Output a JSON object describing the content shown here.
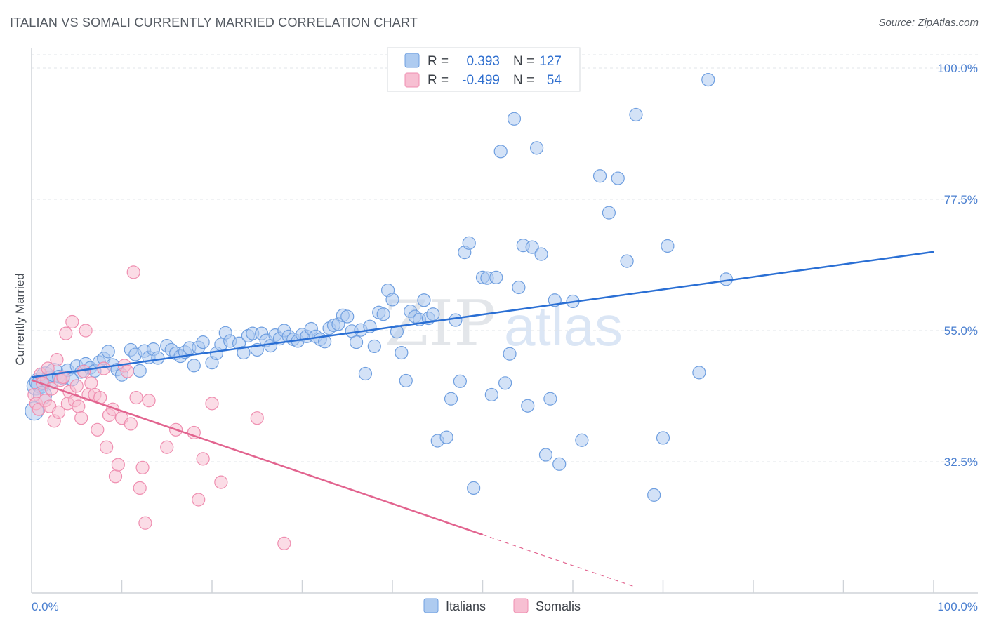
{
  "header": {
    "title": "ITALIAN VS SOMALI CURRENTLY MARRIED CORRELATION CHART",
    "source": "Source: ZipAtlas.com"
  },
  "watermark": {
    "part1": "ZIP",
    "part2": "atlas"
  },
  "legend": {
    "r_label": "R =",
    "n_label": "N =",
    "entries": [
      {
        "r": "0.393",
        "n": "127",
        "color": "#6f9fe0"
      },
      {
        "r": "-0.499",
        "n": "54",
        "color": "#ef8eb0"
      }
    ]
  },
  "chart_data": {
    "type": "scatter",
    "title": "ITALIAN VS SOMALI CURRENTLY MARRIED CORRELATION CHART",
    "xlabel": "",
    "ylabel": "Currently Married",
    "xlim": [
      0,
      100
    ],
    "ylim": [
      10,
      100
    ],
    "x_tick_labels": [
      "0.0%",
      "100.0%"
    ],
    "y_ticks": [
      32.5,
      55.0,
      77.5,
      100.0
    ],
    "y_tick_labels": [
      "32.5%",
      "55.0%",
      "77.5%",
      "100.0%"
    ],
    "grid": true,
    "legend_position": "bottom-center",
    "series": [
      {
        "name": "Italians",
        "color": "#6f9fe0",
        "fill": "#aecbf0",
        "trend": {
          "x0": 0,
          "y0": 47.0,
          "x1": 100,
          "y1": 68.5,
          "dashed_from": null
        },
        "points": [
          [
            0.3,
            41.2
          ],
          [
            0.5,
            45.5
          ],
          [
            0.8,
            46.2
          ],
          [
            1,
            45.8
          ],
          [
            1.2,
            43.9
          ],
          [
            1.5,
            47.2
          ],
          [
            2,
            46.5
          ],
          [
            2.5,
            47.8
          ],
          [
            3,
            47.1
          ],
          [
            3.5,
            46.8
          ],
          [
            4,
            48.2
          ],
          [
            4.5,
            46.6
          ],
          [
            5,
            48.9
          ],
          [
            5.5,
            47.9
          ],
          [
            6,
            49.3
          ],
          [
            6.5,
            48.6
          ],
          [
            7,
            48.1
          ],
          [
            7.5,
            49.6
          ],
          [
            8,
            50.2
          ],
          [
            8.5,
            51.4
          ],
          [
            9,
            49.1
          ],
          [
            9.5,
            48.3
          ],
          [
            10,
            47.4
          ],
          [
            11,
            51.7
          ],
          [
            11.5,
            50.9
          ],
          [
            12,
            48.1
          ],
          [
            12.5,
            51.5
          ],
          [
            13,
            50.4
          ],
          [
            13.5,
            51.8
          ],
          [
            14,
            50.3
          ],
          [
            15,
            52.4
          ],
          [
            15.5,
            51.7
          ],
          [
            16,
            51.1
          ],
          [
            16.5,
            50.6
          ],
          [
            17,
            51.3
          ],
          [
            17.5,
            52.0
          ],
          [
            18,
            49.0
          ],
          [
            18.5,
            52.1
          ],
          [
            19,
            53.0
          ],
          [
            20,
            49.5
          ],
          [
            20.5,
            51.1
          ],
          [
            21,
            52.6
          ],
          [
            21.5,
            54.6
          ],
          [
            22,
            53.2
          ],
          [
            23,
            52.8
          ],
          [
            23.5,
            51.2
          ],
          [
            24,
            54.1
          ],
          [
            24.5,
            54.5
          ],
          [
            25,
            51.7
          ],
          [
            25.5,
            54.5
          ],
          [
            26,
            53.3
          ],
          [
            26.5,
            52.4
          ],
          [
            27,
            54.2
          ],
          [
            27.5,
            53.6
          ],
          [
            28,
            55.0
          ],
          [
            28.5,
            54.0
          ],
          [
            29,
            53.5
          ],
          [
            29.5,
            53.2
          ],
          [
            30,
            54.3
          ],
          [
            30.5,
            54.0
          ],
          [
            31,
            55.3
          ],
          [
            31.5,
            54.0
          ],
          [
            32,
            53.5
          ],
          [
            32.5,
            53.1
          ],
          [
            33,
            55.4
          ],
          [
            33.5,
            55.9
          ],
          [
            34,
            56.1
          ],
          [
            34.5,
            57.6
          ],
          [
            35,
            57.4
          ],
          [
            35.5,
            54.9
          ],
          [
            36,
            53.0
          ],
          [
            36.5,
            55.1
          ],
          [
            37,
            47.6
          ],
          [
            37.5,
            55.7
          ],
          [
            38,
            52.3
          ],
          [
            38.5,
            58.1
          ],
          [
            39,
            57.8
          ],
          [
            39.5,
            61.9
          ],
          [
            40,
            60.3
          ],
          [
            40.5,
            54.8
          ],
          [
            41,
            51.2
          ],
          [
            41.5,
            46.4
          ],
          [
            42,
            58.3
          ],
          [
            42.5,
            57.4
          ],
          [
            43,
            56.9
          ],
          [
            43.5,
            60.2
          ],
          [
            44,
            57.1
          ],
          [
            44.5,
            57.8
          ],
          [
            45,
            36.1
          ],
          [
            46,
            36.7
          ],
          [
            46.5,
            43.3
          ],
          [
            47,
            56.8
          ],
          [
            47.5,
            46.3
          ],
          [
            48,
            68.4
          ],
          [
            48.5,
            70.0
          ],
          [
            49,
            28.0
          ],
          [
            50,
            64.1
          ],
          [
            50.5,
            64.0
          ],
          [
            51,
            44.0
          ],
          [
            51.5,
            64.1
          ],
          [
            52,
            85.7
          ],
          [
            52.5,
            46.0
          ],
          [
            53,
            51.0
          ],
          [
            53.5,
            91.3
          ],
          [
            54,
            62.4
          ],
          [
            54.5,
            69.6
          ],
          [
            55,
            42.1
          ],
          [
            55.5,
            69.3
          ],
          [
            56,
            86.3
          ],
          [
            56.5,
            68.1
          ],
          [
            57,
            33.7
          ],
          [
            57.5,
            43.3
          ],
          [
            58,
            60.2
          ],
          [
            58.5,
            32.1
          ],
          [
            60,
            60.0
          ],
          [
            61,
            36.2
          ],
          [
            63,
            81.5
          ],
          [
            64,
            75.2
          ],
          [
            65,
            81.1
          ],
          [
            66,
            66.9
          ],
          [
            67,
            92.0
          ],
          [
            69,
            26.8
          ],
          [
            70,
            36.6
          ],
          [
            70.5,
            69.5
          ],
          [
            74,
            47.8
          ],
          [
            75,
            98.0
          ],
          [
            77,
            63.8
          ]
        ]
      },
      {
        "name": "Somalis",
        "color": "#ef8eb0",
        "fill": "#f7bfd2",
        "trend": {
          "x0": 0,
          "y0": 46.5,
          "x1": 50,
          "y1": 20.0,
          "dashed_from": 50,
          "x2": 67,
          "y2": 11.0
        },
        "points": [
          [
            0.3,
            44.0
          ],
          [
            0.5,
            42.5
          ],
          [
            0.8,
            41.5
          ],
          [
            1,
            47.5
          ],
          [
            1.2,
            46.0
          ],
          [
            1.5,
            43.0
          ],
          [
            1.8,
            48.5
          ],
          [
            2,
            42.0
          ],
          [
            2.2,
            45.0
          ],
          [
            2.5,
            39.5
          ],
          [
            2.8,
            50.0
          ],
          [
            3,
            41.0
          ],
          [
            3.2,
            46.5
          ],
          [
            3.5,
            47.0
          ],
          [
            3.8,
            54.5
          ],
          [
            4,
            42.5
          ],
          [
            4.2,
            44.5
          ],
          [
            4.5,
            56.5
          ],
          [
            4.8,
            43.0
          ],
          [
            5,
            45.5
          ],
          [
            5.2,
            42.0
          ],
          [
            5.5,
            40.0
          ],
          [
            5.8,
            48.0
          ],
          [
            6,
            55.0
          ],
          [
            6.3,
            44.0
          ],
          [
            6.6,
            46.0
          ],
          [
            7,
            44.0
          ],
          [
            7.3,
            38.0
          ],
          [
            7.6,
            43.5
          ],
          [
            8,
            48.5
          ],
          [
            8.3,
            35.0
          ],
          [
            8.6,
            40.5
          ],
          [
            9,
            41.5
          ],
          [
            9.3,
            30.0
          ],
          [
            9.6,
            32.0
          ],
          [
            10,
            40.0
          ],
          [
            10.3,
            49.0
          ],
          [
            10.6,
            48.0
          ],
          [
            11,
            39.0
          ],
          [
            11.3,
            65.0
          ],
          [
            11.6,
            43.5
          ],
          [
            12,
            28.0
          ],
          [
            12.3,
            31.5
          ],
          [
            12.6,
            22.0
          ],
          [
            13,
            43.0
          ],
          [
            15,
            35.0
          ],
          [
            16,
            38.0
          ],
          [
            18,
            37.5
          ],
          [
            18.5,
            26.0
          ],
          [
            19,
            33.0
          ],
          [
            20,
            42.5
          ],
          [
            21,
            29.0
          ],
          [
            25,
            40.0
          ],
          [
            28,
            18.5
          ]
        ]
      }
    ]
  }
}
